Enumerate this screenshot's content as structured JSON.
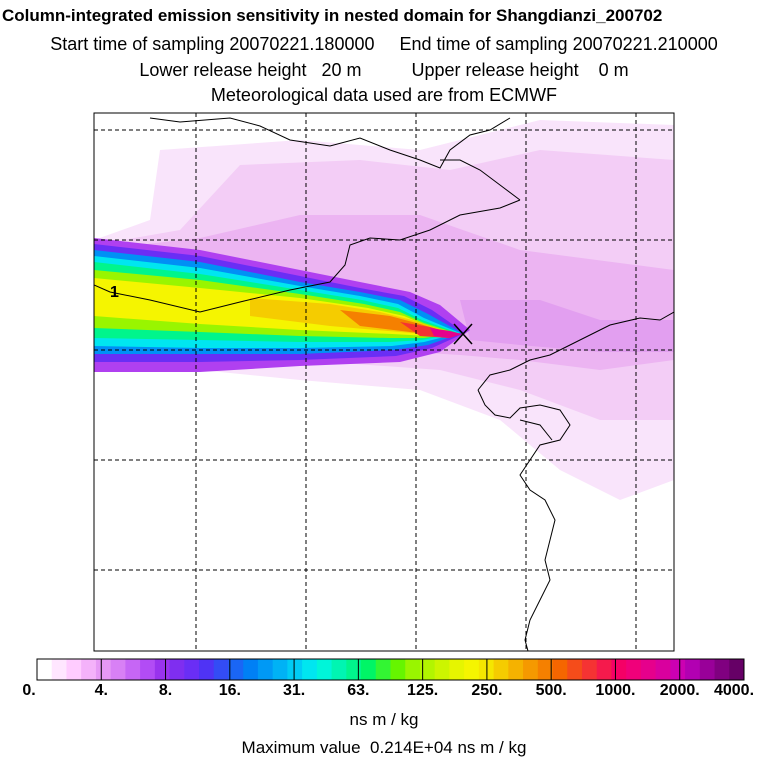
{
  "header": {
    "title": "Column-integrated emission sensitivity in nested domain for Shangdianzi_200702",
    "sampling": "Start time of sampling 20070221.180000     End time of sampling 20070221.210000",
    "release": "Lower release height   20 m          Upper release height    0 m",
    "met": "Meteorological data used are from ECMWF"
  },
  "map": {
    "contour_label": "1",
    "receptor_marker": "x-marker-icon",
    "plume_colors": [
      "#f6d8f8",
      "#e8a8f0",
      "#b040f0",
      "#6040f0",
      "#00c8f0",
      "#00f0a0",
      "#a0f000",
      "#f0f000",
      "#f0c000",
      "#f08000",
      "#e02020"
    ]
  },
  "colorbar": {
    "colors": [
      "#ffffff",
      "#ffe6ff",
      "#ffccff",
      "#f4b2fa",
      "#e699f5",
      "#d880f5",
      "#c666f5",
      "#b24cf5",
      "#9933ee",
      "#7f2ef0",
      "#6a2ef5",
      "#4f33f5",
      "#334cf5",
      "#1a66f5",
      "#0080f5",
      "#0099f5",
      "#00b2f5",
      "#00ccf5",
      "#00e6f0",
      "#00f5d9",
      "#00f5b2",
      "#00f58c",
      "#00f566",
      "#33f533",
      "#66f500",
      "#99f500",
      "#b2f500",
      "#ccf500",
      "#e6f500",
      "#f5f500",
      "#f5e600",
      "#f5cc00",
      "#f5b200",
      "#f59900",
      "#f58000",
      "#f56600",
      "#f54c1a",
      "#f53333",
      "#f51a4c",
      "#f50066",
      "#f0007a",
      "#e6008c",
      "#d9009e",
      "#cc00b2",
      "#b200b2",
      "#990099",
      "#800080",
      "#660066"
    ],
    "ticks": [
      "0.",
      "4.",
      "8.",
      "16.",
      "31.",
      "63.",
      "125.",
      "250.",
      "500.",
      "1000.",
      "2000.",
      "4000."
    ],
    "units": "ns m / kg",
    "maximum": "Maximum value  0.214E+04 ns m / kg"
  }
}
